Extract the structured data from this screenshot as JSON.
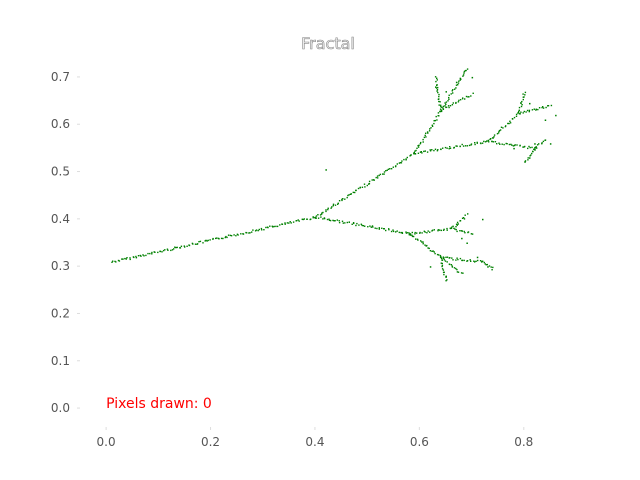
{
  "chart_data": {
    "type": "scatter",
    "title": "Fractal",
    "xlabel": "",
    "ylabel": "",
    "xlim": [
      -0.05,
      0.9
    ],
    "ylim": [
      -0.04,
      0.74
    ],
    "grid": false,
    "x_ticks": [
      0.0,
      0.2,
      0.4,
      0.6,
      0.8
    ],
    "x_tick_labels": [
      "0.0",
      "0.2",
      "0.4",
      "0.6",
      "0.8"
    ],
    "y_ticks": [
      0.0,
      0.1,
      0.2,
      0.3,
      0.4,
      0.5,
      0.6,
      0.7
    ],
    "y_tick_labels": [
      "0.0",
      "0.1",
      "0.2",
      "0.3",
      "0.4",
      "0.5",
      "0.6",
      "0.7"
    ],
    "annotation": {
      "text": "Pixels drawn: 0",
      "x": 0.0,
      "y": 0.0,
      "color": "#ff0000"
    },
    "series": [
      {
        "color": "#008000",
        "segments": [
          [
            [
              0.01,
              0.31
            ],
            [
              0.4,
              0.405
            ]
          ],
          [
            [
              0.4,
              0.405
            ],
            [
              0.59,
              0.54
            ]
          ],
          [
            [
              0.4,
              0.405
            ],
            [
              0.58,
              0.37
            ]
          ],
          [
            [
              0.59,
              0.54
            ],
            [
              0.64,
              0.63
            ]
          ],
          [
            [
              0.64,
              0.63
            ],
            [
              0.63,
              0.7
            ]
          ],
          [
            [
              0.64,
              0.63
            ],
            [
              0.69,
              0.72
            ]
          ],
          [
            [
              0.64,
              0.63
            ],
            [
              0.7,
              0.665
            ]
          ],
          [
            [
              0.59,
              0.54
            ],
            [
              0.73,
              0.565
            ]
          ],
          [
            [
              0.73,
              0.565
            ],
            [
              0.79,
              0.625
            ]
          ],
          [
            [
              0.79,
              0.625
            ],
            [
              0.8,
              0.67
            ]
          ],
          [
            [
              0.79,
              0.625
            ],
            [
              0.85,
              0.64
            ]
          ],
          [
            [
              0.73,
              0.565
            ],
            [
              0.82,
              0.55
            ]
          ],
          [
            [
              0.82,
              0.55
            ],
            [
              0.8,
              0.52
            ]
          ],
          [
            [
              0.82,
              0.55
            ],
            [
              0.84,
              0.57
            ]
          ],
          [
            [
              0.58,
              0.37
            ],
            [
              0.66,
              0.38
            ]
          ],
          [
            [
              0.66,
              0.38
            ],
            [
              0.69,
              0.41
            ]
          ],
          [
            [
              0.66,
              0.38
            ],
            [
              0.7,
              0.37
            ]
          ],
          [
            [
              0.58,
              0.37
            ],
            [
              0.64,
              0.32
            ]
          ],
          [
            [
              0.64,
              0.32
            ],
            [
              0.65,
              0.27
            ]
          ],
          [
            [
              0.64,
              0.32
            ],
            [
              0.68,
              0.285
            ]
          ],
          [
            [
              0.64,
              0.32
            ],
            [
              0.72,
              0.31
            ]
          ],
          [
            [
              0.72,
              0.31
            ],
            [
              0.74,
              0.295
            ]
          ]
        ],
        "points": [
          [
            0.42,
            0.505
          ],
          [
            0.65,
            0.67
          ],
          [
            0.63,
            0.68
          ],
          [
            0.67,
            0.69
          ],
          [
            0.7,
            0.7
          ],
          [
            0.81,
            0.645
          ],
          [
            0.84,
            0.61
          ],
          [
            0.86,
            0.62
          ],
          [
            0.82,
            0.56
          ],
          [
            0.78,
            0.55
          ],
          [
            0.81,
            0.53
          ],
          [
            0.85,
            0.56
          ],
          [
            0.68,
            0.36
          ],
          [
            0.72,
            0.4
          ],
          [
            0.69,
            0.35
          ],
          [
            0.62,
            0.3
          ],
          [
            0.65,
            0.28
          ],
          [
            0.73,
            0.3
          ],
          [
            0.71,
            0.32
          ],
          [
            0.67,
            0.39
          ]
        ]
      }
    ]
  }
}
